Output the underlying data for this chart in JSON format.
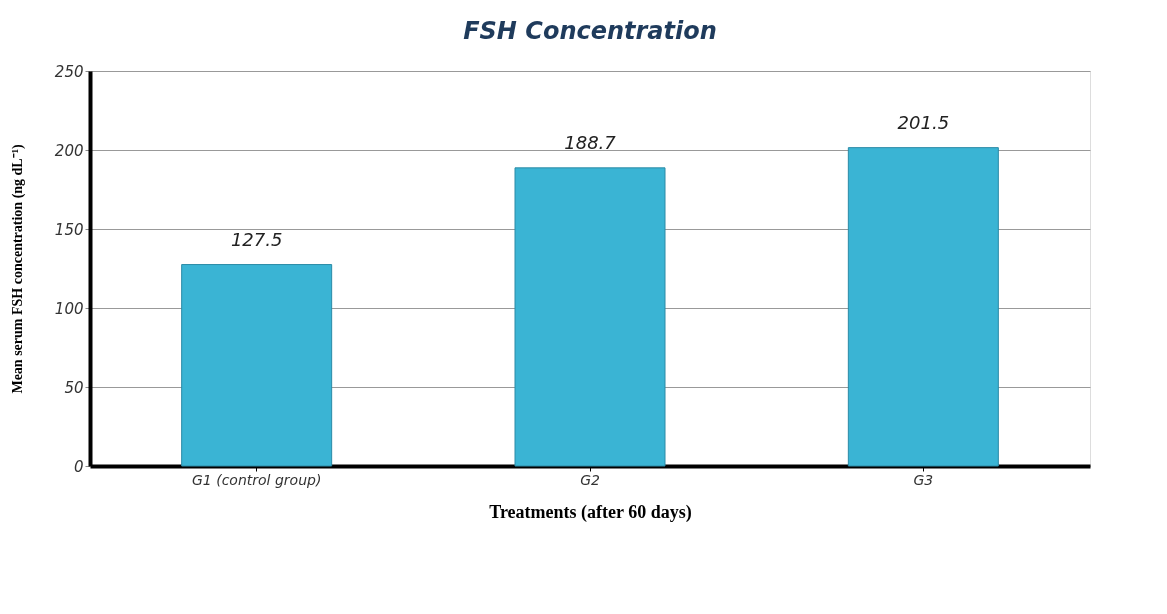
{
  "chart_data": {
    "type": "bar",
    "title": "FSH Concentration",
    "xlabel": "Treatments (after 60 days)",
    "ylabel": "Mean serum FSH concentration (ng dL⁻¹)",
    "categories": [
      "G1 (control group)",
      "G2",
      "G3"
    ],
    "values": [
      127.5,
      188.7,
      201.5
    ],
    "color": "#3ab4d4",
    "ylim": [
      0,
      250
    ],
    "yticks": [
      0,
      50,
      100,
      150,
      200,
      250
    ],
    "grid": "y",
    "data_labels": true
  }
}
